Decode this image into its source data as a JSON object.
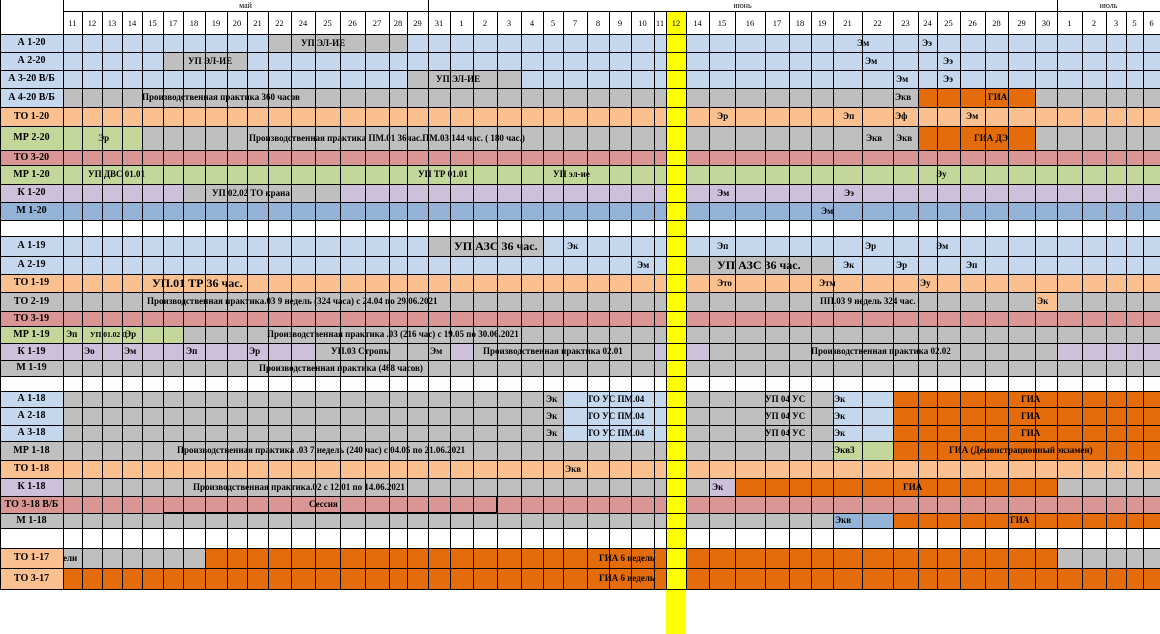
{
  "months": [
    "май",
    "июнь",
    "июль"
  ],
  "days": [
    "11",
    "12",
    "13",
    "14",
    "15",
    "17",
    "18",
    "19",
    "20",
    "21",
    "22",
    "24",
    "25",
    "26",
    "27",
    "28",
    "29",
    "31",
    "1",
    "2",
    "3",
    "4",
    "5",
    "7",
    "8",
    "9",
    "10",
    "11",
    "12",
    "14",
    "15",
    "16",
    "17",
    "18",
    "19",
    "21",
    "22",
    "23",
    "24",
    "25",
    "26",
    "28",
    "29",
    "30",
    "1",
    "2",
    "3",
    "5",
    "6"
  ],
  "highlight_day_index": 28,
  "colors": {
    "blue_light": "#C5D7ED",
    "blue": "#95B3D7",
    "gray": "#BFBFBF",
    "orange_light": "#FAC090",
    "orange": "#E46C0A",
    "green": "#C4D79B",
    "pink": "#DA9694",
    "lavender": "#CCC0DA",
    "yellow": "#FFFF00"
  },
  "groups": [
    {
      "label": "А 1-20",
      "base": "blue_light",
      "segments": [
        {
          "from": 10,
          "to": 16,
          "color": "gray"
        }
      ],
      "notes": [
        {
          "text": "УП ЭЛ-ИЕ",
          "col": 11,
          "offset": 10
        },
        {
          "text": "Эм",
          "col": 36,
          "offset": -5
        },
        {
          "text": "Ээ",
          "col": 38,
          "offset": 4
        }
      ]
    },
    {
      "label": "А 2-20",
      "base": "blue_light",
      "segments": [
        {
          "from": 5,
          "to": 9,
          "color": "gray"
        }
      ],
      "notes": [
        {
          "text": "УП ЭЛ-ИЕ",
          "col": 6,
          "offset": 5
        },
        {
          "text": "Эм",
          "col": 36,
          "offset": 3
        },
        {
          "text": "Ээ",
          "col": 39,
          "offset": 6
        }
      ]
    },
    {
      "label": "А 3-20 В/Б",
      "base": "blue_light",
      "segments": [
        {
          "from": 16,
          "to": 21,
          "color": "gray"
        }
      ],
      "notes": [
        {
          "text": "УП ЭЛ-ИЕ",
          "col": 17,
          "offset": 8
        },
        {
          "text": "Эм",
          "col": 37,
          "offset": 3
        },
        {
          "text": "Ээ",
          "col": 39,
          "offset": 6
        }
      ]
    },
    {
      "label": "А 4-20 В/Б",
      "base": "gray",
      "segments": [
        {
          "from": 38,
          "to": 43,
          "color": "orange"
        }
      ],
      "notes": [
        {
          "text": "Производственная практика 360 часов",
          "col": 4,
          "offset": 0
        },
        {
          "text": "Экв",
          "col": 37,
          "offset": 2
        },
        {
          "text": "ГИА",
          "col": 41,
          "offset": 3
        }
      ]
    },
    {
      "label": "ТО 1-20",
      "base": "orange_light",
      "segments": [],
      "notes": [
        {
          "text": "Эр",
          "col": 30,
          "offset": 8
        },
        {
          "text": "Эп",
          "col": 35,
          "offset": 10
        },
        {
          "text": "Эф",
          "col": 37,
          "offset": 2
        },
        {
          "text": "Эм",
          "col": 40,
          "offset": 6
        }
      ]
    },
    {
      "label": "МР 2-20",
      "base": "gray",
      "segments": [
        {
          "from": 0,
          "to": 4,
          "color": "green"
        },
        {
          "from": 38,
          "to": 43,
          "color": "orange"
        }
      ],
      "notes": [
        {
          "text": "Эр",
          "col": 1,
          "offset": 16
        },
        {
          "text": "Производственная практика ПМ.01 36час.ПМ.03 144 час. ( 180 час.)",
          "col": 9,
          "offset": 2
        },
        {
          "text": "Экв",
          "col": 36,
          "offset": 4
        },
        {
          "text": "Экв",
          "col": 37,
          "offset": 3
        },
        {
          "text": "ГИА ДЭ",
          "col": 40,
          "offset": 14
        }
      ]
    },
    {
      "label": "ТО 3-20",
      "base": "pink",
      "segments": [],
      "notes": []
    },
    {
      "label": "МР 1-20",
      "base": "green",
      "segments": [],
      "notes": [
        {
          "text": "УП ДВС 01.01",
          "col": 1,
          "offset": 6
        },
        {
          "text": "УП ТР 01.01",
          "col": 16,
          "offset": 11
        },
        {
          "text": "УП эл-ие",
          "col": 22,
          "offset": 10
        },
        {
          "text": "Эу",
          "col": 38,
          "offset": 18
        }
      ]
    },
    {
      "label": "К 1-20",
      "base": "lavender",
      "segments": [
        {
          "from": 6,
          "to": 13,
          "color": "gray"
        }
      ],
      "notes": [
        {
          "text": "УП 02.02 ТО крана",
          "col": 7,
          "offset": 7
        },
        {
          "text": "Эм",
          "col": 30,
          "offset": 8
        },
        {
          "text": "Ээ",
          "col": 35,
          "offset": 11
        }
      ]
    },
    {
      "label": "М 1-20",
      "base": "blue",
      "segments": [],
      "notes": [
        {
          "text": "Эм",
          "col": 34,
          "offset": 10
        }
      ]
    },
    {
      "label": "",
      "base": "white",
      "segments": [],
      "notes": []
    },
    {
      "label": "А 1-19",
      "base": "blue_light",
      "segments": [
        {
          "from": 17,
          "to": 22,
          "color": "gray"
        }
      ],
      "notes": [
        {
          "text": "УП АЗС 36 час.",
          "col": 18,
          "offset": 4,
          "big": true
        },
        {
          "text": "Эк",
          "col": 23,
          "offset": 4
        },
        {
          "text": "Эп",
          "col": 30,
          "offset": 8
        },
        {
          "text": "Эр",
          "col": 36,
          "offset": 3
        },
        {
          "text": "Эм",
          "col": 38,
          "offset": 18
        }
      ]
    },
    {
      "label": "А 2-19",
      "base": "blue_light",
      "segments": [
        {
          "from": 29,
          "to": 35,
          "color": "gray"
        }
      ],
      "notes": [
        {
          "text": "Эм",
          "col": 26,
          "offset": 6
        },
        {
          "text": "УП АЗС 36 час.",
          "col": 30,
          "offset": 8,
          "big": true
        },
        {
          "text": "Эк",
          "col": 35,
          "offset": 10
        },
        {
          "text": "Эр",
          "col": 37,
          "offset": 3
        },
        {
          "text": "Эп",
          "col": 40,
          "offset": 6
        }
      ]
    },
    {
      "label": "ТО 1-19",
      "base": "orange_light",
      "segments": [],
      "notes": [
        {
          "text": "УП.01 ТР 36 час.",
          "col": 4,
          "offset": 10,
          "big": true
        },
        {
          "text": "Это",
          "col": 30,
          "offset": 8
        },
        {
          "text": "Этм",
          "col": 34,
          "offset": 8
        },
        {
          "text": "Эу",
          "col": 38,
          "offset": 2
        }
      ]
    },
    {
      "label": "ТО 2-19",
      "base": "gray",
      "segments": [
        {
          "from": 43,
          "to": 44,
          "color": "orange_light"
        }
      ],
      "notes": [
        {
          "text": "Производственная практика.03  9 недель (324 часа)  с 24.04 по 29.06.2021",
          "col": 4,
          "offset": 5
        },
        {
          "text": "ПП.03 9 недель 324 час.",
          "col": 34,
          "offset": 9
        },
        {
          "text": "Эк",
          "col": 43,
          "offset": 2
        }
      ]
    },
    {
      "label": "ТО 3-19",
      "base": "pink",
      "segments": [],
      "notes": []
    },
    {
      "label": "МР 1-19",
      "base": "gray",
      "segments": [
        {
          "from": 0,
          "to": 6,
          "color": "green"
        }
      ],
      "notes": [
        {
          "text": "Эп",
          "col": 0,
          "offset": 3
        },
        {
          "text": "УП.01.02 Д",
          "col": 1,
          "offset": 8,
          "small": true
        },
        {
          "text": "Эр",
          "col": 3,
          "offset": 3
        },
        {
          "text": "Производственная практика .03 (216 час) с 19.05 по 30.06.2021",
          "col": 9,
          "offset": 20
        }
      ]
    },
    {
      "label": "К 1-19",
      "base": "lavender",
      "segments": [
        {
          "from": 12,
          "to": 18,
          "color": "gray"
        },
        {
          "from": 19,
          "to": 27,
          "color": "gray"
        },
        {
          "from": 30,
          "to": 44,
          "color": "gray"
        }
      ],
      "notes": [
        {
          "text": "Эо",
          "col": 1,
          "offset": 2
        },
        {
          "text": "Эм",
          "col": 3,
          "offset": 2
        },
        {
          "text": "Эп",
          "col": 6,
          "offset": 3
        },
        {
          "text": "Эр",
          "col": 9,
          "offset": 2
        },
        {
          "text": "УП.03 Стропы",
          "col": 12,
          "offset": 16
        },
        {
          "text": "Эм",
          "col": 17,
          "offset": 2
        },
        {
          "text": "Производственная практика 02.01",
          "col": 19,
          "offset": 10
        },
        {
          "text": "Производственная практика 02.02",
          "col": 34,
          "offset": 0
        }
      ]
    },
    {
      "label": "М 1-19",
      "base": "gray",
      "segments": [],
      "notes": [
        {
          "text": "Производственная практика (468 часов)",
          "col": 9,
          "offset": 12
        }
      ]
    },
    {
      "label": "",
      "base": "white",
      "segments": [],
      "notes": []
    },
    {
      "label": "А 1-18",
      "base": "gray",
      "segments": [
        {
          "from": 23,
          "to": 28,
          "color": "blue_light"
        },
        {
          "from": 35,
          "to": 37,
          "color": "blue_light"
        },
        {
          "from": 37,
          "to": 49,
          "color": "orange"
        }
      ],
      "notes": [
        {
          "text": "Эк",
          "col": 22,
          "offset": 3
        },
        {
          "text": "ТО УС ПМ.04",
          "col": 24,
          "offset": 0
        },
        {
          "text": "УП 04 УС",
          "col": 32,
          "offset": 0
        },
        {
          "text": "Эк",
          "col": 35,
          "offset": 1
        },
        {
          "text": "ГИА",
          "col": 42,
          "offset": 13
        }
      ]
    },
    {
      "label": "А 2-18",
      "base": "gray",
      "segments": [
        {
          "from": 23,
          "to": 28,
          "color": "blue_light"
        },
        {
          "from": 35,
          "to": 37,
          "color": "blue_light"
        },
        {
          "from": 37,
          "to": 49,
          "color": "orange"
        }
      ],
      "notes": [
        {
          "text": "Эк",
          "col": 22,
          "offset": 3
        },
        {
          "text": "ТО УС ПМ.04",
          "col": 24,
          "offset": 0
        },
        {
          "text": "УП 04 УС",
          "col": 32,
          "offset": 0
        },
        {
          "text": "Эк",
          "col": 35,
          "offset": 1
        },
        {
          "text": "ГИА",
          "col": 42,
          "offset": 13
        }
      ]
    },
    {
      "label": "А 3-18",
      "base": "gray",
      "segments": [
        {
          "from": 23,
          "to": 28,
          "color": "blue_light"
        },
        {
          "from": 35,
          "to": 37,
          "color": "blue_light"
        },
        {
          "from": 37,
          "to": 49,
          "color": "orange"
        }
      ],
      "notes": [
        {
          "text": "Эк",
          "col": 22,
          "offset": 3
        },
        {
          "text": "ТО УС ПМ.04",
          "col": 24,
          "offset": 0
        },
        {
          "text": "УП 04 УС",
          "col": 32,
          "offset": 0
        },
        {
          "text": "Эк",
          "col": 35,
          "offset": 1
        },
        {
          "text": "ГИА",
          "col": 42,
          "offset": 13
        }
      ]
    },
    {
      "label": "МР 1-18",
      "base": "gray",
      "segments": [
        {
          "from": 35,
          "to": 37,
          "color": "green"
        },
        {
          "from": 37,
          "to": 49,
          "color": "orange"
        }
      ],
      "notes": [
        {
          "text": "Производственная практика .03 7 недель (240 час) с 04.05 по 21.06.2021",
          "col": 5,
          "offset": 14
        },
        {
          "text": "Экв3",
          "col": 35,
          "offset": 1
        },
        {
          "text": "ГИА (Демонстрационный экзамен)",
          "col": 39,
          "offset": 12
        }
      ]
    },
    {
      "label": "ТО 1-18",
      "base": "orange_light",
      "segments": [],
      "notes": [
        {
          "text": "Экв",
          "col": 23,
          "offset": 2
        }
      ]
    },
    {
      "label": "К 1-18",
      "base": "gray",
      "segments": [
        {
          "from": 30,
          "to": 31,
          "color": "lavender"
        },
        {
          "from": 31,
          "to": 44,
          "color": "orange"
        }
      ],
      "notes": [
        {
          "text": "Производственная практика.02 с 12.01 по 14.06.2021",
          "col": 6,
          "offset": 10
        },
        {
          "text": "Эк",
          "col": 30,
          "offset": 3
        },
        {
          "text": "ГИА",
          "col": 37,
          "offset": 10
        }
      ]
    },
    {
      "label": "ТО 3-18 В/Б",
      "base": "pink",
      "segments": [],
      "notes": [
        {
          "text": "Сессия",
          "col": 11,
          "offset": 18
        }
      ]
    },
    {
      "label": "М 1-18",
      "base": "gray",
      "segments": [
        {
          "from": 35,
          "to": 37,
          "color": "blue"
        },
        {
          "from": 37,
          "to": 49,
          "color": "orange"
        }
      ],
      "notes": [
        {
          "text": "Экв",
          "col": 35,
          "offset": 2
        },
        {
          "text": "ГИА",
          "col": 42,
          "offset": 2
        }
      ]
    },
    {
      "label": "",
      "base": "white",
      "segments": [],
      "notes": []
    },
    {
      "label": "ТО 1-17",
      "base": "gray",
      "segments": [
        {
          "from": 7,
          "to": 44,
          "color": "orange"
        }
      ],
      "notes": [
        {
          "text": "ели",
          "col": 0,
          "offset": 0
        },
        {
          "text": "ГИА 6 недель",
          "col": 24,
          "offset": 12
        }
      ]
    },
    {
      "label": "ТО 3-17",
      "base": "orange",
      "segments": [],
      "notes": [
        {
          "text": "ГИА 6 недель",
          "col": 24,
          "offset": 12
        }
      ]
    }
  ]
}
